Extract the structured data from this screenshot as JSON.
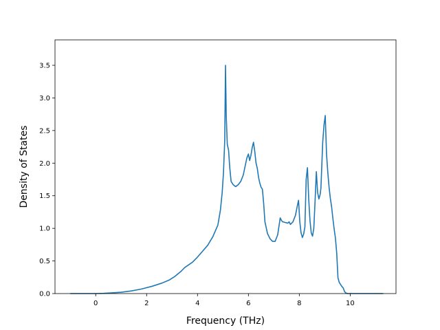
{
  "chart_data": {
    "type": "line",
    "title": "",
    "xlabel": "Frequency (THz)",
    "ylabel": "Density of States",
    "xlim": [
      -1.6,
      11.8
    ],
    "ylim": [
      0,
      3.5
    ],
    "ylim_top": 3.5,
    "y_max_display": 3.5,
    "xticks": [
      0,
      2,
      4,
      6,
      8,
      10
    ],
    "yticks": [
      0.0,
      0.5,
      1.0,
      1.5,
      2.0,
      2.5,
      3.0,
      3.5
    ],
    "xtick_labels": [
      "0",
      "2",
      "4",
      "6",
      "8",
      "10"
    ],
    "ytick_labels": [
      "0.0",
      "0.5",
      "1.0",
      "1.5",
      "2.0",
      "2.5",
      "3.0",
      "3.5"
    ],
    "grid": false,
    "legend": "none",
    "line_color": "#1f77b4",
    "series": [
      {
        "x": [
          -1.0,
          -0.5,
          0.0,
          0.3,
          0.6,
          1.0,
          1.4,
          1.8,
          2.2,
          2.6,
          2.9,
          3.1,
          3.35,
          3.5,
          3.8,
          4.0,
          4.2,
          4.4,
          4.6,
          4.8,
          4.9,
          4.97,
          5.02,
          5.07,
          5.1,
          5.13,
          5.17,
          5.22,
          5.27,
          5.32,
          5.4,
          5.5,
          5.6,
          5.7,
          5.8,
          5.88,
          5.94,
          6.0,
          6.05,
          6.1,
          6.15,
          6.2,
          6.25,
          6.3,
          6.35,
          6.4,
          6.45,
          6.5,
          6.55,
          6.6,
          6.65,
          6.75,
          6.85,
          6.95,
          7.05,
          7.15,
          7.25,
          7.3,
          7.35,
          7.45,
          7.55,
          7.6,
          7.65,
          7.75,
          7.85,
          7.92,
          7.97,
          8.02,
          8.07,
          8.12,
          8.17,
          8.22,
          8.27,
          8.32,
          8.37,
          8.42,
          8.47,
          8.52,
          8.57,
          8.62,
          8.67,
          8.72,
          8.77,
          8.82,
          8.85,
          8.88,
          8.92,
          8.97,
          9.02,
          9.07,
          9.12,
          9.17,
          9.22,
          9.27,
          9.32,
          9.37,
          9.42,
          9.47,
          9.52,
          9.57,
          9.62,
          9.67,
          9.72,
          9.75,
          9.78,
          9.82,
          9.9,
          10.0,
          10.1,
          10.2,
          10.3,
          10.5,
          11.0,
          11.3
        ],
        "y": [
          0.0,
          0.0,
          0.0,
          0.003,
          0.01,
          0.02,
          0.04,
          0.07,
          0.11,
          0.16,
          0.21,
          0.26,
          0.34,
          0.4,
          0.48,
          0.56,
          0.65,
          0.74,
          0.87,
          1.05,
          1.28,
          1.55,
          1.85,
          2.35,
          3.5,
          2.72,
          2.29,
          2.2,
          1.92,
          1.72,
          1.67,
          1.64,
          1.67,
          1.72,
          1.82,
          1.97,
          2.08,
          2.14,
          2.04,
          2.12,
          2.24,
          2.32,
          2.18,
          2.0,
          1.92,
          1.78,
          1.69,
          1.63,
          1.6,
          1.38,
          1.1,
          0.92,
          0.84,
          0.8,
          0.8,
          0.9,
          1.16,
          1.12,
          1.1,
          1.09,
          1.08,
          1.1,
          1.06,
          1.1,
          1.2,
          1.34,
          1.43,
          1.1,
          0.93,
          0.86,
          0.91,
          1.02,
          1.75,
          1.93,
          1.45,
          1.12,
          0.93,
          0.88,
          1.0,
          1.42,
          1.87,
          1.55,
          1.45,
          1.52,
          1.62,
          1.92,
          2.32,
          2.58,
          2.73,
          2.14,
          1.86,
          1.63,
          1.46,
          1.33,
          1.15,
          0.99,
          0.85,
          0.62,
          0.24,
          0.17,
          0.14,
          0.11,
          0.09,
          0.06,
          0.03,
          0.01,
          0.0,
          0.0,
          0.0,
          0.0,
          0.0,
          0.0,
          0.0,
          0.0
        ]
      }
    ]
  }
}
